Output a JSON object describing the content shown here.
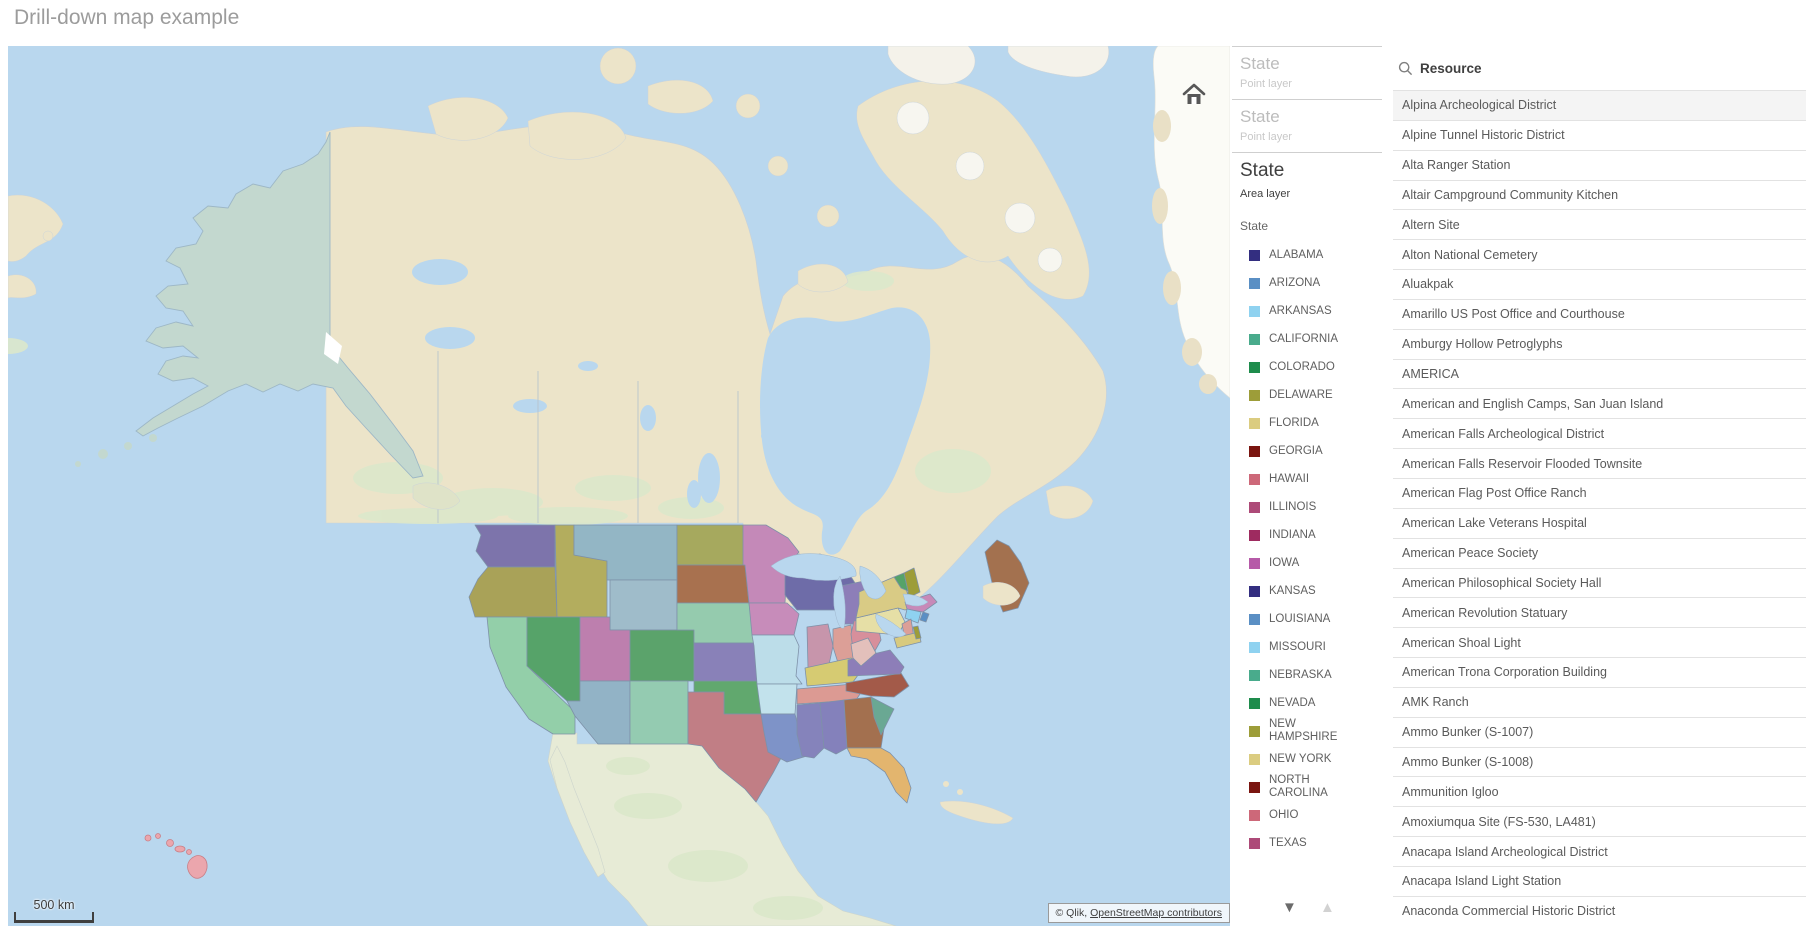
{
  "page": {
    "title": "Drill-down map example"
  },
  "map": {
    "scale_label": "500 km",
    "attribution_prefix": "© Qlik, ",
    "attribution_link": "OpenStreetMap contributors",
    "colors": {
      "ocean": "#b9d7ee",
      "land": "#ece4c9",
      "land_green": "#dce8cb",
      "alaska": "#c3d8cf",
      "ice": "#fbfbf6",
      "hawaii": "#eba6ad",
      "hawaii_border": "#c97f87",
      "state_border": "#7e91a8"
    },
    "state_colors": {
      "WA": "#7d74ab",
      "OR": "#a9a258",
      "ID": "#b3ad5e",
      "MT": "#93b6c5",
      "WY": "#9fbcca",
      "ND": "#a6a95e",
      "SD": "#a8714f",
      "MN": "#c489b8",
      "WI": "#6e6ca8",
      "MIUP": "#a06a60",
      "MI": "#8d7eb8",
      "CA": "#93cfa9",
      "NV": "#56a369",
      "UT": "#bd7fae",
      "CO": "#5ba36b",
      "AZ": "#92b3c6",
      "NM": "#94cbb1",
      "KS": "#8981b8",
      "NE": "#95cbae",
      "IA": "#c78cba",
      "MO": "#bcdde9",
      "OK": "#61a86e",
      "TX": "#c17e85",
      "AR": "#c2e2ec",
      "LA": "#7e93c8",
      "MS": "#8583bb",
      "AL": "#8481bb",
      "TN": "#dc9a93",
      "KY": "#d6cb72",
      "IL": "#c795ab",
      "IN": "#dc9f97",
      "OH": "#d78f9b",
      "GA": "#a3704f",
      "FL": "#e3b56e",
      "NC": "#a35a49",
      "SC": "#6aa893",
      "VA": "#8d7eb8",
      "WV": "#e3c0bb",
      "PA": "#e6dfa6",
      "NY": "#d9cb85",
      "ME": "#a3714f",
      "VT": "#56a369",
      "NH": "#9d9d39",
      "MA": "#c789b8",
      "CT": "#8fd2f0",
      "RI": "#5a8fc4",
      "NJ": "#dc9f97",
      "MD": "#d8ca7e",
      "DE": "#9d9d39"
    }
  },
  "legend": {
    "layers": [
      {
        "title": "State",
        "subtitle": "Point layer"
      },
      {
        "title": "State",
        "subtitle": "Point layer"
      },
      {
        "title": "State",
        "subtitle": "Area layer",
        "dimension": "State"
      }
    ],
    "items": [
      {
        "label": "ALABAMA",
        "color": "#332e80"
      },
      {
        "label": "ARIZONA",
        "color": "#5a8fc4"
      },
      {
        "label": "ARKANSAS",
        "color": "#8fd2f0"
      },
      {
        "label": "CALIFORNIA",
        "color": "#49ab8c"
      },
      {
        "label": "COLORADO",
        "color": "#1e8c4c"
      },
      {
        "label": "DELAWARE",
        "color": "#9d9d39"
      },
      {
        "label": "FLORIDA",
        "color": "#dbcc80"
      },
      {
        "label": "GEORGIA",
        "color": "#7a1510"
      },
      {
        "label": "HAWAII",
        "color": "#cd6879"
      },
      {
        "label": "ILLINOIS",
        "color": "#ad4a78"
      },
      {
        "label": "INDIANA",
        "color": "#9e2b60"
      },
      {
        "label": "IOWA",
        "color": "#b65aa8"
      },
      {
        "label": "KANSAS",
        "color": "#332e80"
      },
      {
        "label": "LOUISIANA",
        "color": "#5a8fc4"
      },
      {
        "label": "MISSOURI",
        "color": "#8fd2f0"
      },
      {
        "label": "NEBRASKA",
        "color": "#49ab8c"
      },
      {
        "label": "NEVADA",
        "color": "#1e8c4c"
      },
      {
        "label": "NEW HAMPSHIRE",
        "color": "#9d9d39"
      },
      {
        "label": "NEW YORK",
        "color": "#dbcc80"
      },
      {
        "label": "NORTH CAROLINA",
        "color": "#7a1510"
      },
      {
        "label": "OHIO",
        "color": "#cd6879"
      },
      {
        "label": "TEXAS",
        "color": "#ad4a78"
      }
    ]
  },
  "listbox": {
    "title": "Resource",
    "items": [
      "Alpina Archeological District",
      "Alpine Tunnel Historic District",
      "Alta Ranger Station",
      "Altair Campground Community Kitchen",
      "Altern Site",
      "Alton National Cemetery",
      "Aluakpak",
      "Amarillo US Post Office and Courthouse",
      "Amburgy Hollow Petroglyphs",
      "AMERICA",
      "American and English Camps, San Juan Island",
      "American Falls Archeological District",
      "American Falls Reservoir Flooded Townsite",
      "American Flag Post Office Ranch",
      "American Lake Veterans Hospital",
      "American Peace Society",
      "American Philosophical Society Hall",
      "American Revolution Statuary",
      "American Shoal Light",
      "American Trona Corporation Building",
      "AMK Ranch",
      "Ammo Bunker (S-1007)",
      "Ammo Bunker (S-1008)",
      "Ammunition Igloo",
      "Amoxiumqua Site (FS-530, LA481)",
      "Anacapa Island Archeological District",
      "Anacapa Island Light Station",
      "Anaconda Commercial Historic District"
    ]
  }
}
